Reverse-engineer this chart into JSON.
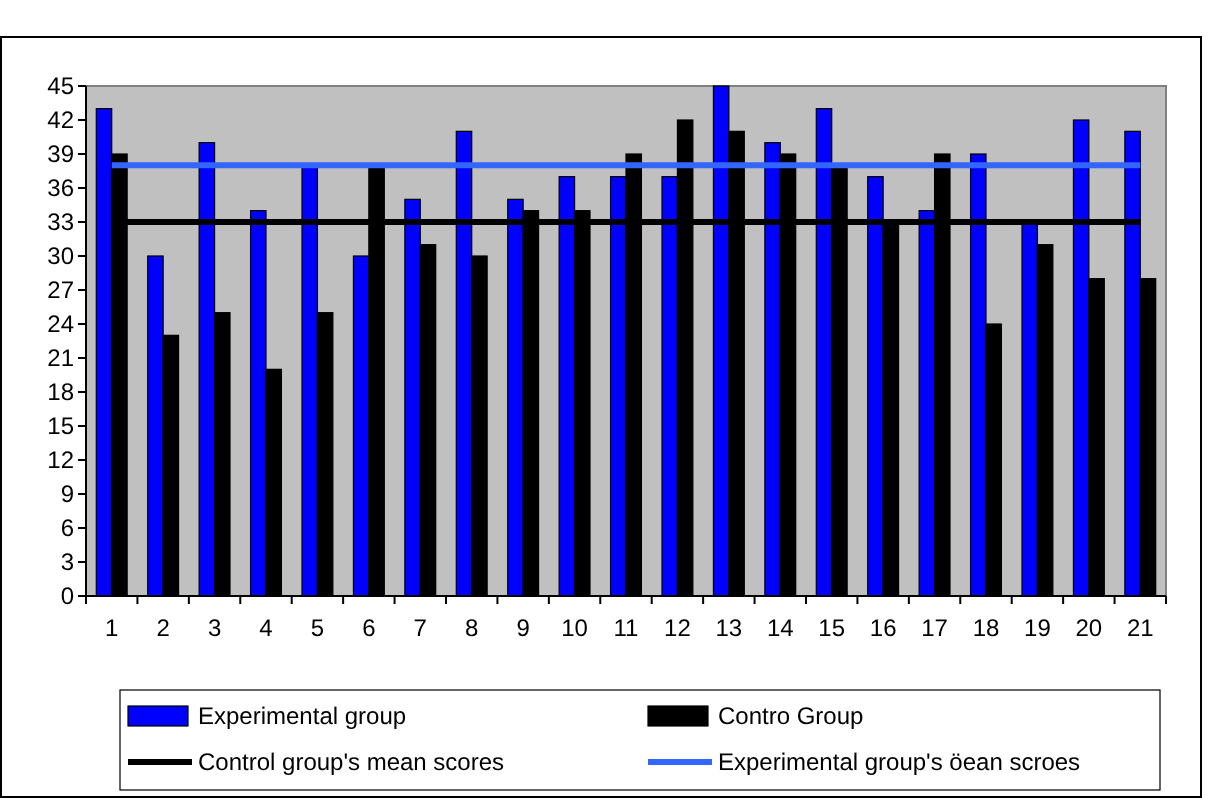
{
  "chart_data": {
    "type": "bar",
    "categories": [
      "1",
      "2",
      "3",
      "4",
      "5",
      "6",
      "7",
      "8",
      "9",
      "10",
      "11",
      "12",
      "13",
      "14",
      "15",
      "16",
      "17",
      "18",
      "19",
      "20",
      "21"
    ],
    "series": [
      {
        "name": "Experimental group",
        "color": "#0000ff",
        "values": [
          43,
          30,
          40,
          34,
          38,
          30,
          35,
          41,
          35,
          37,
          37,
          37,
          45,
          40,
          43,
          37,
          34,
          39,
          33,
          42,
          41
        ]
      },
      {
        "name": "Contro Group",
        "color": "#000000",
        "values": [
          39,
          23,
          25,
          20,
          25,
          38,
          31,
          30,
          34,
          34,
          39,
          42,
          41,
          39,
          38,
          33,
          39,
          24,
          31,
          28,
          28
        ]
      }
    ],
    "ref_lines": [
      {
        "axis": "y",
        "value": 33,
        "label": "Control group's mean scores",
        "color": "#000000"
      },
      {
        "axis": "y",
        "value": 38,
        "label": "Experimental group's öean scroes",
        "color": "#3366ff"
      }
    ],
    "ylim": [
      0,
      45
    ],
    "yticks": [
      0,
      3,
      6,
      9,
      12,
      15,
      18,
      21,
      24,
      27,
      30,
      33,
      36,
      39,
      42,
      45
    ],
    "grid": false,
    "legend": "bottom"
  }
}
